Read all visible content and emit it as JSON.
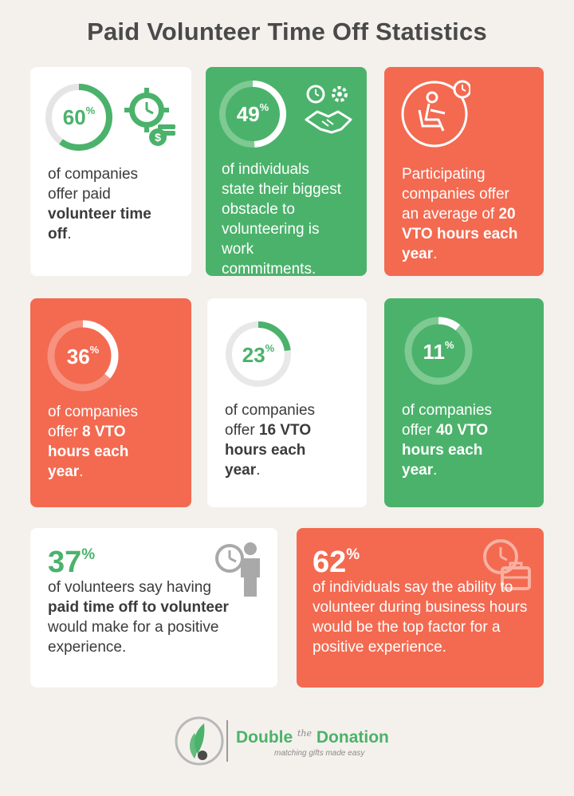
{
  "title": "Paid Volunteer Time Off Statistics",
  "colors": {
    "green": "#4bb26b",
    "coral": "#f36a51",
    "white": "#ffffff",
    "background": "#f4f1ec"
  },
  "cards": [
    {
      "id": "card1",
      "percent_value": 60,
      "percent_label": "60",
      "percent_sign": "%",
      "text_parts": [
        "of companies offer paid ",
        "volunteer time off",
        "."
      ],
      "icon": "clock-gear-money-icon"
    },
    {
      "id": "card2",
      "percent_value": 49,
      "percent_label": "49",
      "percent_sign": "%",
      "text": "of individuals state their biggest obstacle to volunteering is work commitments.",
      "icon": "handshake-clock-gear-icon"
    },
    {
      "id": "card3",
      "text_parts": [
        "Participating companies offer an average of ",
        "20 VTO hours each year",
        "."
      ],
      "icon": "person-at-desk-clock-icon"
    },
    {
      "id": "card4",
      "percent_value": 36,
      "percent_label": "36",
      "percent_sign": "%",
      "text_parts": [
        "of companies offer ",
        "8 VTO hours each year",
        "."
      ]
    },
    {
      "id": "card5",
      "percent_value": 23,
      "percent_label": "23",
      "percent_sign": "%",
      "text_parts": [
        "of companies offer ",
        "16 VTO hours each year",
        "."
      ]
    },
    {
      "id": "card6",
      "percent_value": 11,
      "percent_label": "11",
      "percent_sign": "%",
      "text_parts": [
        "of companies offer ",
        "40 VTO hours each year",
        "."
      ]
    },
    {
      "id": "card7",
      "percent_label": "37",
      "percent_sign": "%",
      "text_parts": [
        "of volunteers say having ",
        "paid time off to volunteer",
        " would make for a positive experience."
      ],
      "icon": "person-clock-icon"
    },
    {
      "id": "card8",
      "percent_label": "62",
      "percent_sign": "%",
      "text": "of individuals say the ability to volunteer during business hours would be the top factor for a positive experience.",
      "icon": "briefcase-clock-icon"
    }
  ],
  "footer": {
    "brand_word1": "Double",
    "brand_the": "the",
    "brand_word2": "Donation",
    "tagline": "matching gifts made easy",
    "logo_icon": "double-the-donation-logo-icon"
  }
}
